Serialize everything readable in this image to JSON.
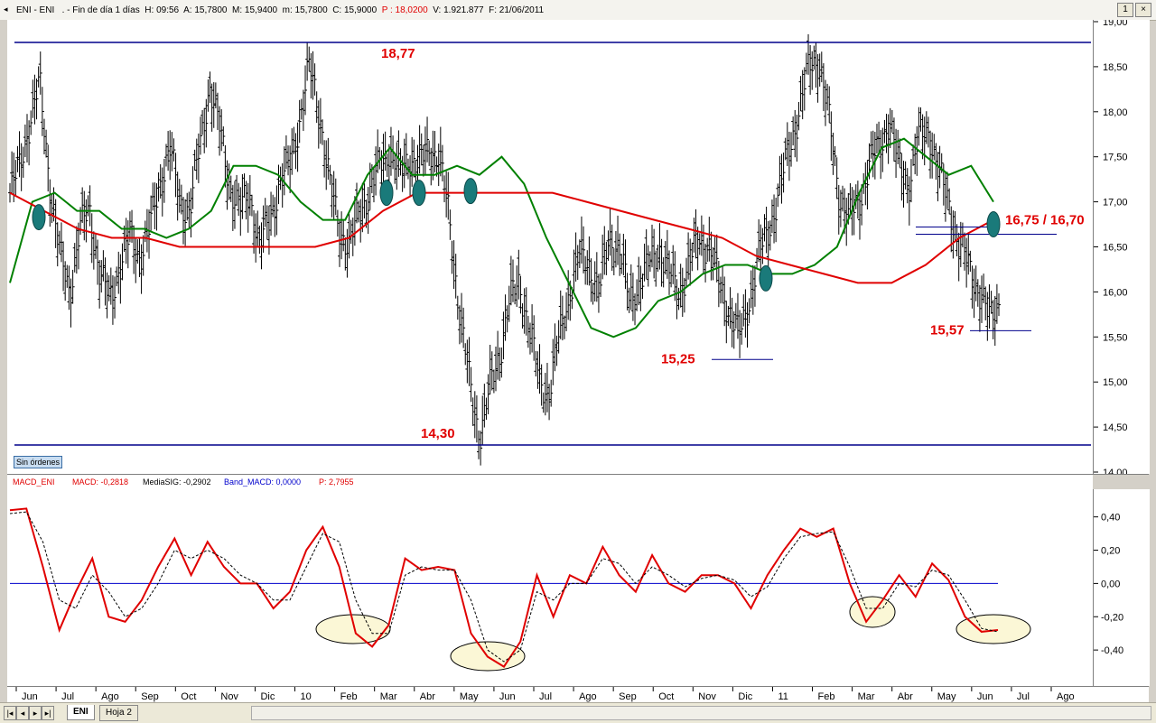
{
  "title_bar": {
    "symbol": "ENI - ENI",
    "rest": ". - Fin de día 1 días  H: 09:56  A: 15,7800  M: 15,9400  m: 15,7800  C: 15,9000  ",
    "p_value": "P : 18,0200",
    "tail": "  V: 1.921.877  F: 21/06/2011",
    "button_1": "1",
    "button_x": "×"
  },
  "macd_header": {
    "name": "MACD_ENI",
    "macd": "MACD: -0,2818",
    "signal": "MediaSIG: -0,2902",
    "band": "Band_MACD: 0,0000",
    "p": "P: 2,7955"
  },
  "status_button": "Sin órdenes",
  "x_axis": {
    "labels": [
      "Jun",
      "Jul",
      "Ago",
      "Sep",
      "Oct",
      "Nov",
      "Dic",
      "10",
      "Feb",
      "Mar",
      "Abr",
      "May",
      "Jun",
      "Jul",
      "Ago",
      "Sep",
      "Oct",
      "Nov",
      "Dic",
      "11",
      "Feb",
      "Mar",
      "Abr",
      "May",
      "Jun",
      "Jul",
      "Ago"
    ]
  },
  "tabs": [
    "ENI",
    "Hoja 2"
  ],
  "colors": {
    "sma_short": "#008000",
    "sma_long": "#e00000",
    "level_lines": "#00008b",
    "bars": "#000000",
    "annotations": "#e00000",
    "macd_line": "#e00000",
    "signal_line": "#000000",
    "zero_line": "#0000cc",
    "marker": "#1a7a7a",
    "ellipse_fill": "#fbf7d6"
  },
  "chart_data": [
    {
      "type": "line",
      "subtype": "ohlc_bars",
      "series": [
        {
          "values": [
            17.1,
            17.4,
            17.9,
            18.3,
            17.2,
            16.4,
            16.0,
            16.7,
            16.9,
            16.2,
            15.9,
            16.3,
            16.6,
            16.4,
            16.7,
            17.2,
            17.6,
            17.0,
            16.9,
            17.6,
            18.3,
            17.8,
            17.2,
            16.9,
            17.1,
            16.5,
            16.8,
            17.2,
            17.4,
            17.9,
            18.5,
            18.0,
            17.2,
            16.7,
            16.5,
            16.9,
            17.1,
            17.4,
            17.6,
            17.3,
            17.5,
            17.4,
            17.6,
            17.5,
            16.8,
            15.8,
            15.0,
            14.4,
            14.9,
            15.3,
            15.9,
            16.1,
            15.6,
            15.0,
            14.9,
            15.5,
            16.0,
            16.4,
            16.3,
            16.0,
            16.6,
            16.5,
            15.9,
            16.1,
            16.3,
            16.5,
            16.2,
            16.0,
            16.3,
            16.6,
            16.5,
            16.1,
            15.8,
            15.5,
            15.9,
            16.4,
            16.7,
            17.1,
            17.6,
            18.0,
            18.5,
            18.6,
            17.9,
            17.1,
            16.8,
            17.0,
            17.4,
            17.6,
            17.9,
            17.4,
            17.2,
            17.7,
            17.8,
            17.3,
            17.0,
            16.5,
            16.3,
            16.0,
            15.7,
            15.9
          ]
        }
      ],
      "ylim": [
        14.0,
        19.0
      ],
      "yticks": [
        "19,00",
        "18,50",
        "18,00",
        "17,50",
        "17,00",
        "16,50",
        "16,00",
        "15,50",
        "15,00",
        "14,50",
        "14,00"
      ],
      "moving_averages": [
        {
          "values": [
            16.1,
            17.0,
            17.1,
            16.9,
            16.9,
            16.7,
            16.7,
            16.6,
            16.7,
            16.9,
            17.4,
            17.4,
            17.3,
            17.0,
            16.8,
            16.8,
            17.3,
            17.6,
            17.3,
            17.3,
            17.4,
            17.3,
            17.5,
            17.2,
            16.6,
            16.1,
            15.6,
            15.5,
            15.6,
            15.9,
            16.0,
            16.2,
            16.3,
            16.3,
            16.2,
            16.2,
            16.3,
            16.5,
            17.1,
            17.6,
            17.7,
            17.5,
            17.3,
            17.4,
            17.0
          ]
        },
        {
          "values": [
            17.1,
            16.9,
            16.7,
            16.6,
            16.6,
            16.5,
            16.5,
            16.5,
            16.5,
            16.5,
            16.6,
            16.9,
            17.1,
            17.1,
            17.1,
            17.1,
            17.1,
            17.0,
            16.9,
            16.8,
            16.7,
            16.6,
            16.4,
            16.3,
            16.2,
            16.1,
            16.1,
            16.3,
            16.6,
            16.8
          ]
        }
      ],
      "levels": [
        {
          "value": 18.77,
          "label": "18,77"
        },
        {
          "value": 14.3,
          "label": "14,30"
        },
        {
          "value": 15.25,
          "label": "15,25"
        },
        {
          "value": 15.57,
          "label": "15,57"
        },
        {
          "value": 16.72,
          "label": "16,75 / 16,70"
        }
      ]
    },
    {
      "type": "line",
      "series": [
        {
          "values": [
            0.44,
            0.45,
            0.1,
            -0.28,
            -0.05,
            0.15,
            -0.2,
            -0.23,
            -0.1,
            0.1,
            0.27,
            0.05,
            0.25,
            0.1,
            0.0,
            0.0,
            -0.15,
            -0.05,
            0.2,
            0.34,
            0.1,
            -0.3,
            -0.38,
            -0.25,
            0.15,
            0.08,
            0.1,
            0.08,
            -0.3,
            -0.44,
            -0.5,
            -0.35,
            0.05,
            -0.2,
            0.05,
            0.0,
            0.22,
            0.05,
            -0.05,
            0.17,
            0.0,
            -0.05,
            0.05,
            0.05,
            0.0,
            -0.15,
            0.05,
            0.2,
            0.33,
            0.28,
            0.33,
            0.0,
            -0.23,
            -0.1,
            0.05,
            -0.08,
            0.12,
            0.02,
            -0.2,
            -0.29,
            -0.28
          ]
        },
        {
          "values": [
            0.42,
            0.43,
            0.25,
            -0.1,
            -0.15,
            0.05,
            -0.05,
            -0.2,
            -0.15,
            0.0,
            0.2,
            0.15,
            0.2,
            0.15,
            0.05,
            0.0,
            -0.1,
            -0.1,
            0.1,
            0.3,
            0.25,
            -0.1,
            -0.3,
            -0.3,
            0.05,
            0.1,
            0.08,
            0.08,
            -0.1,
            -0.4,
            -0.47,
            -0.4,
            -0.05,
            -0.1,
            0.0,
            0.0,
            0.15,
            0.12,
            0.0,
            0.1,
            0.05,
            -0.02,
            0.03,
            0.05,
            0.02,
            -0.08,
            -0.02,
            0.15,
            0.28,
            0.3,
            0.31,
            0.1,
            -0.15,
            -0.15,
            0.0,
            -0.02,
            0.08,
            0.05,
            -0.1,
            -0.27,
            -0.29
          ]
        }
      ],
      "ylim": [
        -0.6,
        0.55
      ],
      "yticks": [
        "0,40",
        "0,20",
        "0,00",
        "-0,20",
        "-0,40"
      ],
      "zero_line": 0.0
    }
  ]
}
